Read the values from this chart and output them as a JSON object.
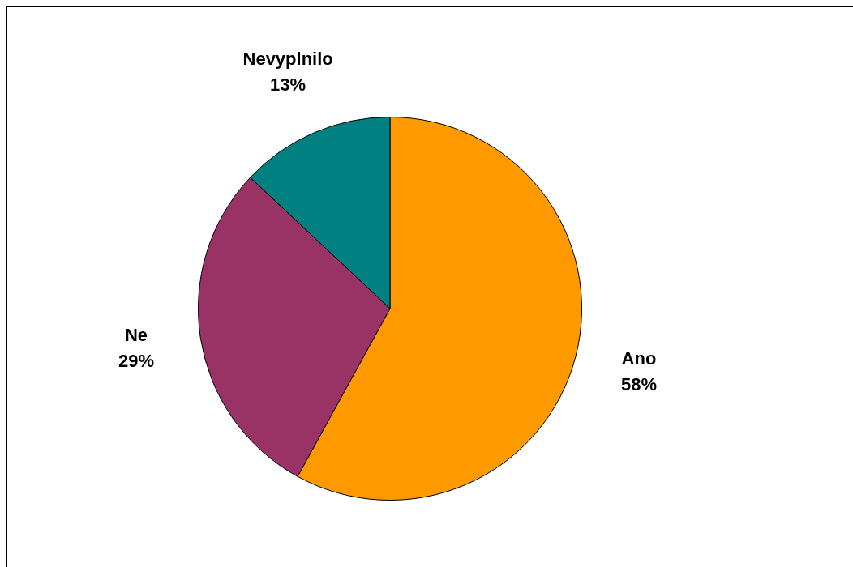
{
  "chart_data": {
    "type": "pie",
    "categories": [
      "Ano",
      "Ne",
      "Nevyplnilo"
    ],
    "values": [
      58,
      29,
      13
    ],
    "colors": [
      "#ff9900",
      "#993366",
      "#008080"
    ],
    "value_labels": [
      "58%",
      "29%",
      "13%"
    ],
    "legend": false
  }
}
